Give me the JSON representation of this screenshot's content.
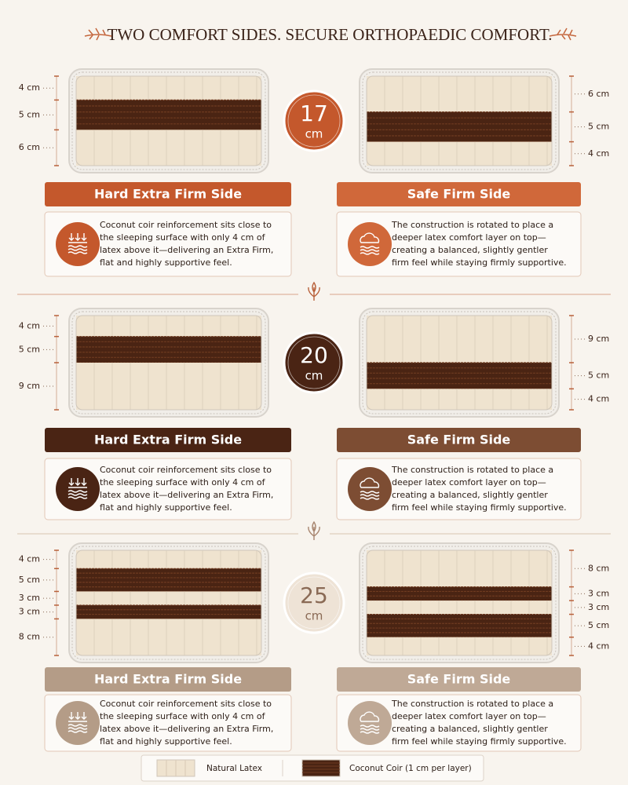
{
  "title": "TWO COMFORT SIDES. SECURE ORTHOPAEDIC COMFORT.",
  "sections": [
    {
      "height": {
        "number": "17",
        "unit": "cm"
      },
      "badge_color": "#c4582c",
      "badge_text_color": "#ffffff",
      "sides": [
        {
          "heading": "Hard Extra Firm Side",
          "color": "#c4582c",
          "icon": "firm",
          "lines": [
            "Coconut coir reinforcement sits close to",
            "the sleeping surface with only 4 cm of",
            "latex above it—delivering an Extra Firm,",
            "flat and highly supportive feel."
          ],
          "layers": [
            {
              "label": "4 cm",
              "value": 4,
              "color": "#efe3cf"
            },
            {
              "label": "5 cm",
              "value": 5,
              "color": "#4a2413"
            },
            {
              "label": "6 cm",
              "value": 6,
              "color": "#efe3cf"
            }
          ]
        },
        {
          "heading": "Safe Firm Side",
          "color": "#d0683a",
          "icon": "soft",
          "lines": [
            "The construction is rotated to place a",
            "deeper latex comfort layer on top—",
            "creating a balanced, slightly gentler",
            "firm feel while staying firmly supportive."
          ],
          "layers": [
            {
              "label": "6 cm",
              "value": 6,
              "color": "#efe3cf"
            },
            {
              "label": "5 cm",
              "value": 5,
              "color": "#4a2413"
            },
            {
              "label": "4 cm",
              "value": 4,
              "color": "#efe3cf"
            }
          ]
        }
      ]
    },
    {
      "height": {
        "number": "20",
        "unit": "cm"
      },
      "badge_color": "#4a2414",
      "badge_text_color": "#ffffff",
      "sides": [
        {
          "heading": "Hard Extra Firm Side",
          "color": "#4a2414",
          "icon": "firm",
          "lines": [
            "Coconut coir reinforcement sits close to",
            "the sleeping surface with only 4 cm of",
            "latex above it—delivering an Extra Firm,",
            "flat and highly supportive feel."
          ],
          "layers": [
            {
              "label": "4 cm",
              "value": 4,
              "color": "#efe3cf"
            },
            {
              "label": "5 cm",
              "value": 5,
              "color": "#4a2413"
            },
            {
              "label": "9 cm",
              "value": 9,
              "color": "#efe3cf"
            }
          ]
        },
        {
          "heading": "Safe Firm Side",
          "color": "#7d4d33",
          "icon": "soft",
          "lines": [
            "The construction is rotated to place a",
            "deeper latex comfort layer on top—",
            "creating a balanced, slightly gentler",
            "firm feel while staying firmly supportive."
          ],
          "layers": [
            {
              "label": "9 cm",
              "value": 9,
              "color": "#efe3cf"
            },
            {
              "label": "5 cm",
              "value": 5,
              "color": "#4a2413"
            },
            {
              "label": "4 cm",
              "value": 4,
              "color": "#efe3cf"
            }
          ]
        }
      ]
    },
    {
      "height": {
        "number": "25",
        "unit": "cm"
      },
      "badge_color": "#eee3d6",
      "badge_text_color": "#8a6a55",
      "sides": [
        {
          "heading": "Hard Extra Firm Side",
          "color": "#b49c87",
          "icon": "firm",
          "lines": [
            "Coconut coir reinforcement sits close to",
            "the sleeping surface with only 4 cm of",
            "latex above it—delivering an Extra Firm,",
            "flat and highly supportive feel."
          ],
          "layers": [
            {
              "label": "4 cm",
              "value": 4,
              "color": "#efe3cf"
            },
            {
              "label": "5 cm",
              "value": 5,
              "color": "#4a2413"
            },
            {
              "label": "3 cm",
              "value": 3,
              "color": "#efe3cf"
            },
            {
              "label": "3 cm",
              "value": 3,
              "color": "#4a2413"
            },
            {
              "label": "8 cm",
              "value": 8,
              "color": "#efe3cf"
            }
          ]
        },
        {
          "heading": "Safe Firm Side",
          "color": "#bfa996",
          "icon": "soft",
          "lines": [
            "The construction is rotated to place a",
            "deeper latex comfort layer on top—",
            "creating a balanced, slightly gentler",
            "firm feel while staying firmly supportive."
          ],
          "layers": [
            {
              "label": "8 cm",
              "value": 8,
              "color": "#efe3cf"
            },
            {
              "label": "3 cm",
              "value": 3,
              "color": "#4a2413"
            },
            {
              "label": "3 cm",
              "value": 3,
              "color": "#efe3cf"
            },
            {
              "label": "5 cm",
              "value": 5,
              "color": "#4a2413"
            },
            {
              "label": "4 cm",
              "value": 4,
              "color": "#efe3cf"
            }
          ]
        }
      ]
    }
  ],
  "legend": [
    {
      "label": "Natural Latex",
      "color": "#efe3cf"
    },
    {
      "label": "Coconut Coir (1 cm per layer)",
      "color": "#4a2413"
    }
  ]
}
